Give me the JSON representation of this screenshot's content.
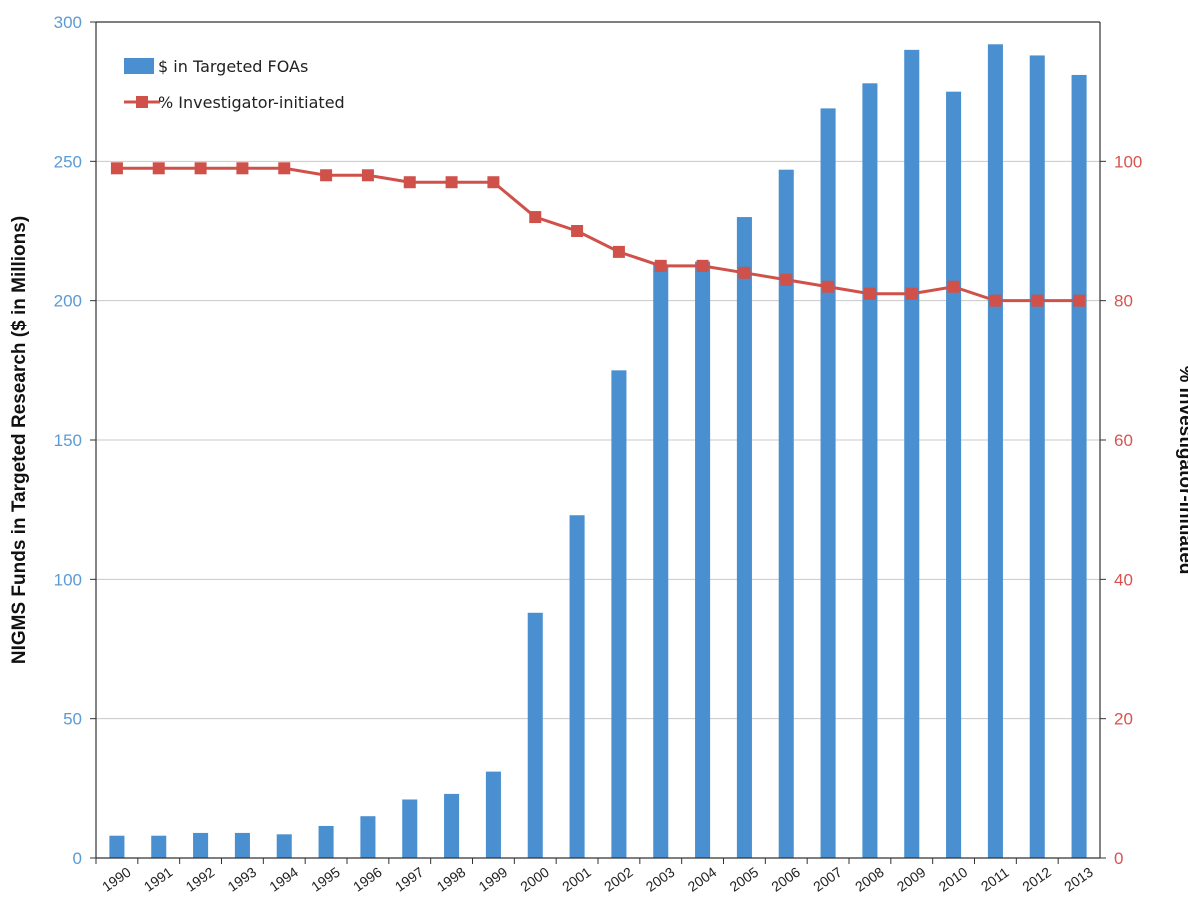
{
  "chart_data": {
    "type": "bar",
    "categories": [
      "1990",
      "1991",
      "1992",
      "1993",
      "1994",
      "1995",
      "1996",
      "1997",
      "1998",
      "1999",
      "2000",
      "2001",
      "2002",
      "2003",
      "2004",
      "2005",
      "2006",
      "2007",
      "2008",
      "2009",
      "2010",
      "2011",
      "2012",
      "2013"
    ],
    "series": [
      {
        "name": "$ in Targeted FOAs",
        "type": "bar",
        "axis": "left",
        "color": "#4a90d0",
        "values": [
          8,
          8,
          9,
          9,
          8.5,
          11.5,
          15,
          21,
          23,
          31,
          88,
          123,
          175,
          213,
          214,
          230,
          247,
          269,
          278,
          290,
          275,
          292,
          288,
          281
        ]
      },
      {
        "name": "% Investigator-initiated",
        "type": "line",
        "axis": "right",
        "color": "#d0504a",
        "values": [
          99,
          99,
          99,
          99,
          99,
          98,
          98,
          97,
          97,
          97,
          92,
          90,
          87,
          85,
          85,
          84,
          83,
          82,
          81,
          81,
          82,
          80,
          80,
          80
        ]
      }
    ],
    "ylabel": "NIGMS Funds in Targeted Research ($ in Millions)",
    "y2label": "% Investigator-initiated",
    "xlabel": "",
    "ylim": [
      0,
      300
    ],
    "y2lim": [
      0,
      120
    ],
    "yticks": [
      0,
      50,
      100,
      150,
      200,
      250,
      300
    ],
    "y2ticks": [
      0,
      20,
      40,
      60,
      80,
      100
    ],
    "grid": true,
    "legend_position": "top-left"
  }
}
